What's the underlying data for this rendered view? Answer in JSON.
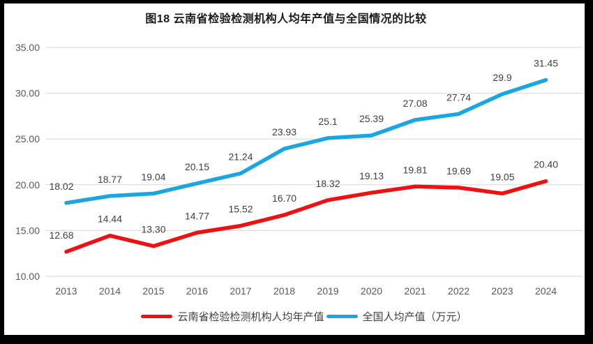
{
  "frame": {
    "background": "#000000",
    "surface_background": "#ffffff"
  },
  "chart_title": "图18  云南省检验检测机构人均年产值与全国情况的比较",
  "legend": {
    "items": [
      {
        "key": "yunnan",
        "label": "云南省检验检测机构人均年产值",
        "color": "#ee1111"
      },
      {
        "key": "national",
        "label": "全国人均产值（万元）",
        "color": "#1ba6e2"
      }
    ]
  },
  "chart_data": {
    "type": "line",
    "title": "图18  云南省检验检测机构人均年产值与全国情况的比较",
    "categories": [
      "2013",
      "2014",
      "2015",
      "2016",
      "2017",
      "2018",
      "2019",
      "2020",
      "2021",
      "2022",
      "2023",
      "2024"
    ],
    "series": [
      {
        "key": "yunnan",
        "name": "云南省检验检测机构人均年产值",
        "color": "#ee1111",
        "values": [
          12.68,
          14.44,
          13.3,
          14.77,
          15.52,
          16.7,
          18.32,
          19.13,
          19.81,
          19.69,
          19.05,
          20.4
        ],
        "labels": [
          "12.68",
          "14.44",
          "13.30",
          "14.77",
          "15.52",
          "16.70",
          "18.32",
          "19.13",
          "19.81",
          "19.69",
          "19.05",
          "20.40"
        ]
      },
      {
        "key": "national",
        "name": "全国人均产值（万元）",
        "color": "#1ba6e2",
        "values": [
          18.02,
          18.77,
          19.04,
          20.15,
          21.24,
          23.93,
          25.1,
          25.39,
          27.08,
          27.74,
          29.9,
          31.45
        ],
        "labels": [
          "18.02",
          "18.77",
          "19.04",
          "20.15",
          "21.24",
          "23.93",
          "25.1",
          "25.39",
          "27.08",
          "27.74",
          "29.9",
          "31.45"
        ]
      }
    ],
    "xlabel": "",
    "ylabel": "",
    "ylim": [
      10,
      35
    ],
    "ytick_step": 5,
    "ytick_labels": [
      "10.00",
      "15.00",
      "20.00",
      "25.00",
      "30.00",
      "35.00"
    ],
    "grid": true,
    "legend_position": "bottom",
    "styles": {
      "gridline_color": "#d9d9d9",
      "axis_label_color": "#595959",
      "data_label_color": "#404040",
      "title_color": "#1a1a1a"
    }
  }
}
